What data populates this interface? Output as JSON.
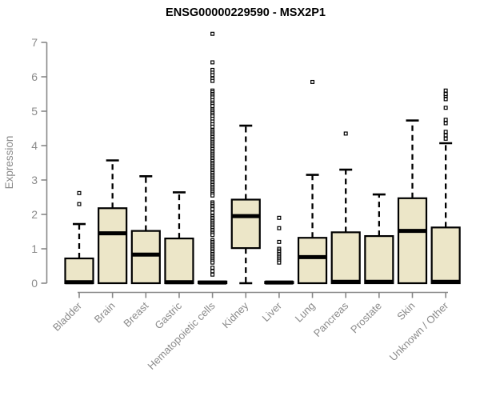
{
  "chart_data": {
    "type": "boxplot",
    "title": "ENSG00000229590 - MSX2P1",
    "xlabel": "",
    "ylabel": "Expression",
    "ylim": [
      0,
      7.3
    ],
    "yticks": [
      0,
      1,
      2,
      3,
      4,
      5,
      6,
      7
    ],
    "grid": false,
    "legend": "none",
    "categories": [
      "Bladder",
      "Brain",
      "Breast",
      "Gastric",
      "Hematopoietic cells",
      "Kidney",
      "Liver",
      "Lung",
      "Pancreas",
      "Prostate",
      "Skin",
      "Unknown / Other"
    ],
    "boxes": [
      {
        "category": "Bladder",
        "whisker_low": 0,
        "q1": 0,
        "median": 0.03,
        "q3": 0.72,
        "whisker_high": 1.72,
        "outliers": [
          2.3,
          2.62
        ]
      },
      {
        "category": "Brain",
        "whisker_low": 0,
        "q1": 0,
        "median": 1.45,
        "q3": 2.18,
        "whisker_high": 3.57,
        "outliers": []
      },
      {
        "category": "Breast",
        "whisker_low": 0,
        "q1": 0,
        "median": 0.83,
        "q3": 1.52,
        "whisker_high": 3.11,
        "outliers": []
      },
      {
        "category": "Gastric",
        "whisker_low": 0,
        "q1": 0,
        "median": 0.03,
        "q3": 1.3,
        "whisker_high": 2.64,
        "outliers": []
      },
      {
        "category": "Hematopoietic cells",
        "whisker_low": 0,
        "q1": 0,
        "median": 0.02,
        "q3": 0.05,
        "whisker_high": 0.05,
        "outliers": [
          7.25,
          6.42,
          6.2,
          6.12,
          6.05,
          5.95,
          5.88,
          5.6,
          5.55,
          5.5,
          5.45,
          5.4,
          5.32,
          5.25,
          5.2,
          5.15,
          5.05,
          5.0,
          4.95,
          4.9,
          4.85,
          4.78,
          4.7,
          4.62,
          4.55,
          4.45,
          4.4,
          4.35,
          4.3,
          4.25,
          4.2,
          4.15,
          4.1,
          4.05,
          4.0,
          3.95,
          3.9,
          3.85,
          3.8,
          3.75,
          3.7,
          3.65,
          3.6,
          3.55,
          3.5,
          3.45,
          3.4,
          3.35,
          3.3,
          3.25,
          3.2,
          3.15,
          3.1,
          3.05,
          3.0,
          2.95,
          2.9,
          2.85,
          2.8,
          2.75,
          2.7,
          2.65,
          2.6,
          2.55,
          2.35,
          2.3,
          2.25,
          2.2,
          2.15,
          2.05,
          1.95,
          1.9,
          1.85,
          1.8,
          1.75,
          1.7,
          1.65,
          1.6,
          1.55,
          1.5,
          1.45,
          1.4,
          1.25,
          1.2,
          1.15,
          1.1,
          1.05,
          1.0,
          0.95,
          0.9,
          0.85,
          0.8,
          0.75,
          0.7,
          0.65,
          0.6,
          0.45,
          0.35,
          0.25
        ]
      },
      {
        "category": "Kidney",
        "whisker_low": 0,
        "q1": 1.02,
        "median": 1.95,
        "q3": 2.43,
        "whisker_high": 4.58,
        "outliers": []
      },
      {
        "category": "Liver",
        "whisker_low": 0,
        "q1": 0,
        "median": 0.02,
        "q3": 0.04,
        "whisker_high": 0.04,
        "outliers": [
          1.9,
          1.6,
          1.2,
          1.0,
          0.95,
          0.9,
          0.85,
          0.8,
          0.75,
          0.7,
          0.65,
          0.6
        ]
      },
      {
        "category": "Lung",
        "whisker_low": 0,
        "q1": 0,
        "median": 0.76,
        "q3": 1.32,
        "whisker_high": 3.15,
        "outliers": [
          5.85
        ]
      },
      {
        "category": "Pancreas",
        "whisker_low": 0,
        "q1": 0,
        "median": 0.04,
        "q3": 1.48,
        "whisker_high": 3.3,
        "outliers": [
          4.35
        ]
      },
      {
        "category": "Prostate",
        "whisker_low": 0,
        "q1": 0,
        "median": 0.04,
        "q3": 1.37,
        "whisker_high": 2.58,
        "outliers": []
      },
      {
        "category": "Skin",
        "whisker_low": 0,
        "q1": 0,
        "median": 1.52,
        "q3": 2.47,
        "whisker_high": 4.73,
        "outliers": []
      },
      {
        "category": "Unknown / Other",
        "whisker_low": 0,
        "q1": 0,
        "median": 0.04,
        "q3": 1.62,
        "whisker_high": 4.07,
        "outliers": [
          4.2,
          4.3,
          4.4,
          4.65,
          4.75,
          5.1,
          5.35,
          5.45,
          5.5,
          5.6
        ]
      }
    ],
    "colors": {
      "box_fill": "#ECE6C8",
      "box_stroke": "#000000",
      "median": "#000000",
      "outlier_stroke": "#000000",
      "outlier_fill": "#FFFFFF",
      "axis": "#888888",
      "tick_label": "#8A8A8A",
      "title_text": "#000000",
      "background": "#FFFFFF"
    }
  }
}
